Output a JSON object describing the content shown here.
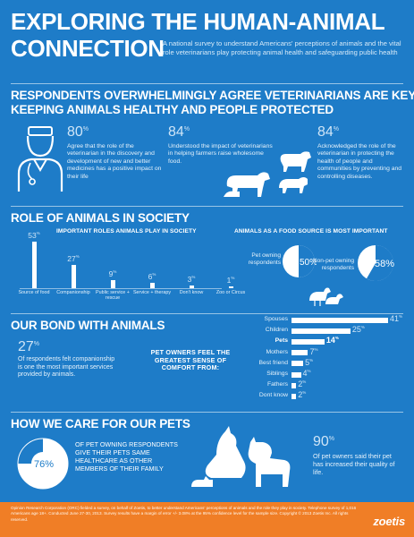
{
  "header": {
    "title_line1": "EXPLORING THE HUMAN-ANIMAL",
    "title_line2": "CONNECTION",
    "intro": "A national survey to understand Americans' perceptions of animals and the vital role veterinarians play protecting animal health and safeguarding public health"
  },
  "vets": {
    "heading_line1": "RESPONDENTS OVERWHELMINGLY AGREE VETERINARIANS ARE KEY TO",
    "heading_line2": "KEEPING ANIMALS HEALTHY AND PEOPLE PROTECTED",
    "stats": [
      {
        "value": "80",
        "unit": "%",
        "text": "Agree that the role of the veterinarian in the discovery and development of new and better medicines has a positive impact on their life"
      },
      {
        "value": "84",
        "unit": "%",
        "text": "Understood the impact of veterinarians in helping farmers raise wholesome food."
      },
      {
        "value": "84",
        "unit": "%",
        "text": "Acknowledged the role of the veterinarian in protecting the health of people and communities by preventing and controlling diseases."
      }
    ],
    "icons": [
      "veterinarian-icon",
      "cattle-icon",
      "livestock-icon"
    ]
  },
  "roles": {
    "heading": "ROLE OF ANIMALS IN SOCIETY",
    "subheading": "IMPORTANT ROLES ANIMALS PLAY IN SOCIETY",
    "chart_data": {
      "type": "bar",
      "categories": [
        "Source of food",
        "Companionship",
        "Public service + rescue",
        "Service + therapy",
        "Don't know",
        "Zoo or Circus"
      ],
      "values": [
        53,
        27,
        9,
        6,
        3,
        1
      ],
      "unit": "%"
    },
    "food": {
      "subheading": "ANIMALS AS A FOOD SOURCE IS MOST IMPORTANT",
      "chart_data": {
        "type": "pie",
        "series": [
          {
            "name": "Pet owning respondents",
            "value": 50
          },
          {
            "name": "Non-pet owning respondents",
            "value": 58
          }
        ],
        "unit": "%"
      },
      "pet_label": "Pet owning respondents",
      "nonpet_label": "Non-pet owning respondents",
      "pet_value": "50%",
      "nonpet_value": "58%"
    }
  },
  "bond": {
    "heading": "OUR BOND WITH ANIMALS",
    "stat_value": "27",
    "stat_unit": "%",
    "stat_text": "Of respondents felt companionship is one the most important services provided by animals.",
    "comfort_label": "PET OWNERS FEEL THE GREATEST SENSE OF COMFORT FROM:",
    "chart_data": {
      "type": "bar",
      "orientation": "horizontal",
      "categories": [
        "Spouses",
        "Children",
        "Pets",
        "Mothers",
        "Best friend",
        "Siblings",
        "Fathers",
        "Dont know"
      ],
      "values": [
        41,
        25,
        14,
        7,
        5,
        4,
        2,
        2
      ],
      "highlight": "Pets",
      "unit": "%"
    }
  },
  "care": {
    "heading": "HOW WE CARE FOR OUR PETS",
    "left_value": "76%",
    "left_text": "OF PET OWNING RESPONDENTS GIVE THEIR PETS SAME HEALTHCARE AS OTHER MEMBERS OF THEIR FAMILY",
    "chart_data": {
      "type": "pie",
      "values": [
        76,
        24
      ],
      "unit": "%"
    },
    "right_value": "90",
    "right_unit": "%",
    "right_text": "Of pet owners said their pet has increased their quality of life."
  },
  "footer": {
    "text": "Opinion Research Corporation (ORC) fielded a survey, on behalf of Zoetis, to better understand Americans' perceptions of animals and the role they play in society. Telephone survey of 1,016 Americans age 18+. Conducted June 27-30, 2013. Survey results have a margin of error +/- 3.08% at the 95% confidence level for the sample size. Copyright © 2013 Zoetis Inc. All rights reserved.",
    "logo": "zoetis"
  },
  "colors": {
    "background": "#1e7cc8",
    "footer": "#f07e26",
    "pie_fill": "#ffffff",
    "pie_accent": "#1e7cc8"
  }
}
